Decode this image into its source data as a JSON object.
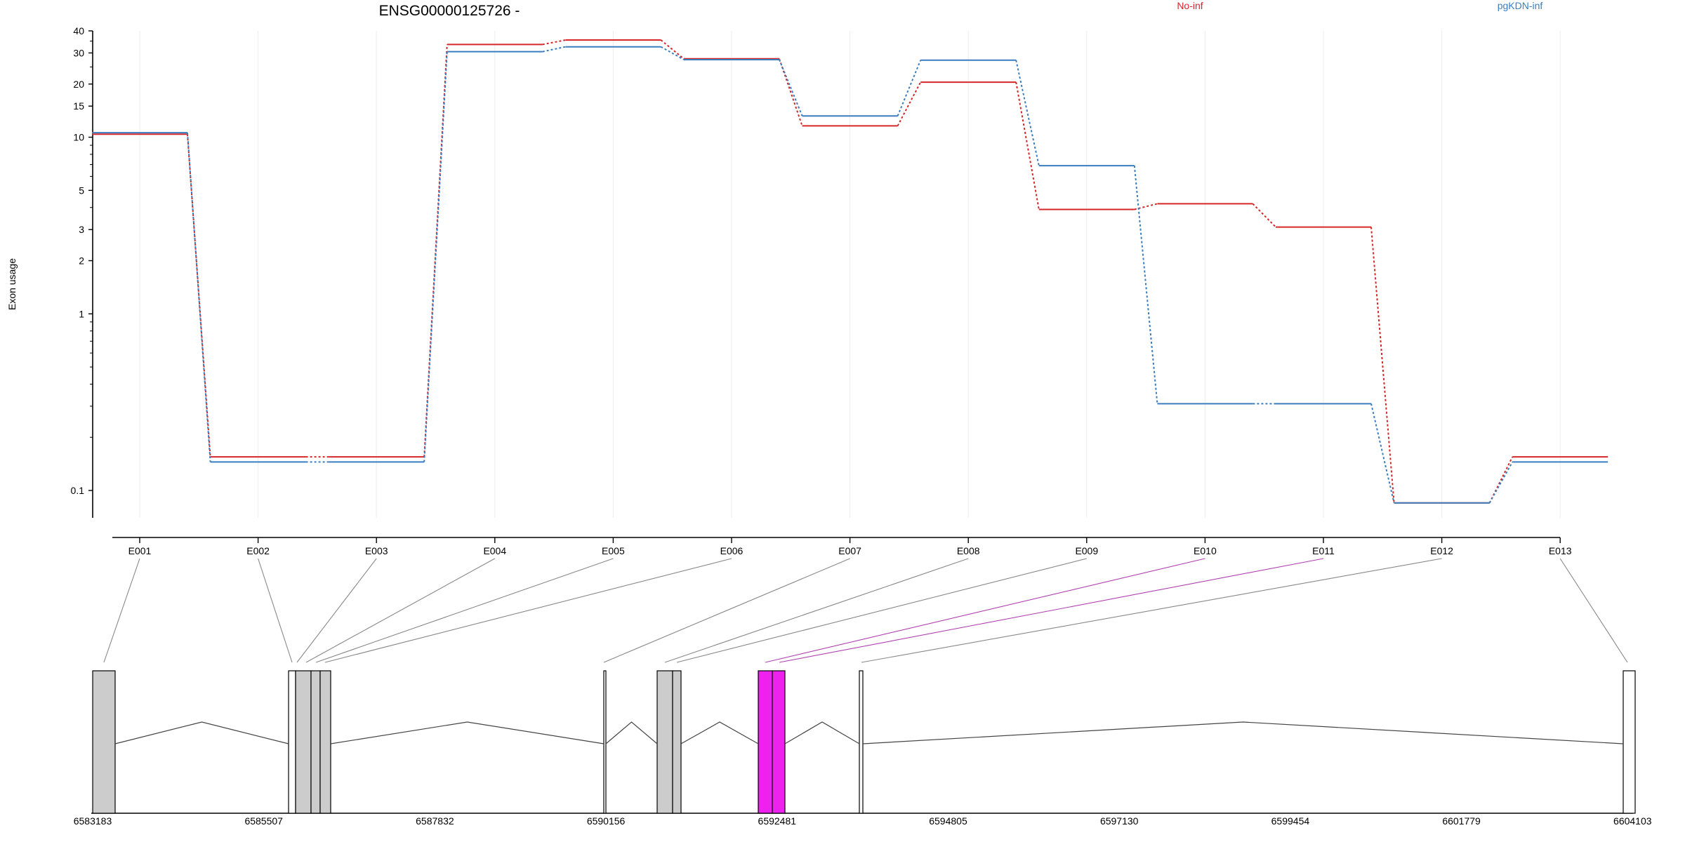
{
  "chart_data": {
    "type": "line",
    "title": "ENSG00000125726 -",
    "xlabel": "",
    "ylabel": "Exon usage",
    "y_scale": "log",
    "ylim": [
      0.07,
      40
    ],
    "y_ticks": [
      0.1,
      1,
      2,
      3,
      5,
      10,
      15,
      20,
      30,
      40
    ],
    "y_tick_labels": [
      "0.1",
      "1",
      "2",
      "3",
      "5",
      "10",
      "15",
      "20",
      "30",
      "40"
    ],
    "grid": "vertical-light",
    "legend_placement": "top-right",
    "categories": [
      "E001",
      "E002",
      "E003",
      "E004",
      "E005",
      "E006",
      "E007",
      "E008",
      "E009",
      "E010",
      "E011",
      "E012",
      "E013"
    ],
    "series": [
      {
        "name": "No-inf",
        "color": "#d62728",
        "values": [
          10.4,
          0.155,
          0.155,
          33.5,
          35.5,
          27.8,
          11.6,
          20.5,
          3.9,
          4.2,
          3.1,
          0.085,
          0.155
        ]
      },
      {
        "name": "pgKDN-inf",
        "color": "#3a7ebf",
        "values": [
          10.6,
          0.145,
          0.145,
          30.5,
          32.5,
          27.5,
          13.2,
          27.3,
          6.9,
          0.31,
          0.31,
          0.085,
          0.145
        ]
      }
    ],
    "gene_model": {
      "axis_ticks": [
        "6583183",
        "6585507",
        "6587832",
        "6590156",
        "6592481",
        "6594805",
        "6597130",
        "6599454",
        "6601779",
        "6604103"
      ],
      "fill_colors": {
        "constitutive": "#cccccc",
        "highlight": "#ee22ee",
        "other": "#ffffff"
      }
    }
  }
}
